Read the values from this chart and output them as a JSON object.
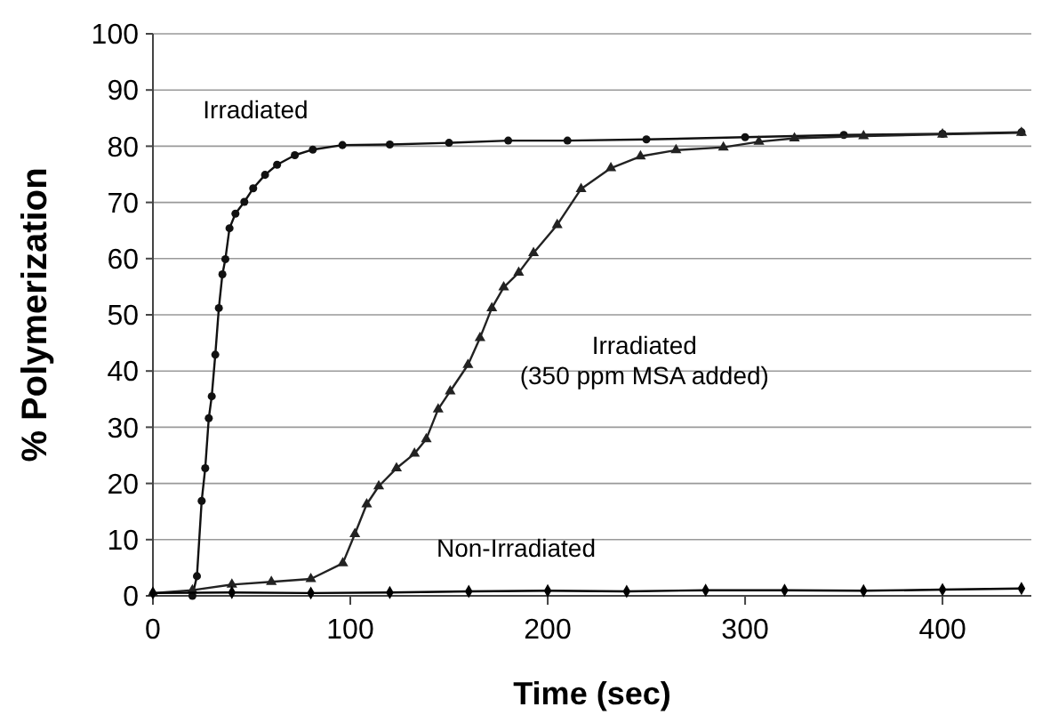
{
  "chart_data": {
    "type": "line",
    "xlabel": "Time (sec)",
    "ylabel": "% Polymerization",
    "xlim": [
      0,
      445
    ],
    "ylim": [
      0,
      100
    ],
    "xticks": [
      0,
      100,
      200,
      300,
      400
    ],
    "yticks": [
      0,
      10,
      20,
      30,
      40,
      50,
      60,
      70,
      80,
      90,
      100
    ],
    "grid": "y",
    "series": [
      {
        "name": "Irradiated",
        "color": "#111111",
        "marker": "circle",
        "x": [
          20,
          22.3,
          24.7,
          26.5,
          28.3,
          29.8,
          31.6,
          33.4,
          35.2,
          36.7,
          38.8,
          41.8,
          46.3,
          50.8,
          56.8,
          62.9,
          71.9,
          81,
          96,
          120,
          150,
          180,
          210,
          250,
          300,
          350,
          400,
          440
        ],
        "values": [
          0,
          3.5,
          16.9,
          22.7,
          31.6,
          35.5,
          42.9,
          51.2,
          57.2,
          59.9,
          65.4,
          68,
          70.1,
          72.5,
          74.9,
          76.7,
          78.4,
          79.4,
          80.2,
          80.3,
          80.6,
          81,
          81,
          81.2,
          81.6,
          82,
          82.2,
          82.5
        ]
      },
      {
        "name": "Irradiated\n(350 ppm MSA added)",
        "color": "#222222",
        "marker": "triangle",
        "x": [
          0,
          20,
          40,
          60,
          80,
          96.2,
          102.3,
          108.3,
          114.4,
          123.4,
          132.5,
          138.5,
          144.5,
          150.6,
          159.6,
          165.7,
          171.7,
          177.7,
          185.3,
          192.8,
          204.8,
          216.9,
          232,
          247,
          265,
          289,
          307,
          325,
          360,
          400,
          440
        ],
        "values": [
          0.5,
          1,
          2,
          2.5,
          3,
          5.8,
          11,
          16.3,
          19.5,
          22.7,
          25.3,
          27.9,
          33.2,
          36.4,
          41.1,
          45.9,
          51.2,
          54.9,
          57.5,
          61,
          66,
          72.4,
          76.1,
          78.2,
          79.3,
          79.8,
          80.8,
          81.4,
          81.8,
          82.1,
          82.4
        ]
      },
      {
        "name": "Non-Irradiated",
        "color": "#000000",
        "marker": "diamond",
        "x": [
          0,
          40,
          80,
          120,
          160,
          200,
          240,
          280,
          320,
          360,
          400,
          440
        ],
        "values": [
          0.5,
          0.6,
          0.5,
          0.6,
          0.8,
          0.9,
          0.8,
          1,
          1,
          0.9,
          1.1,
          1.3
        ]
      }
    ]
  }
}
